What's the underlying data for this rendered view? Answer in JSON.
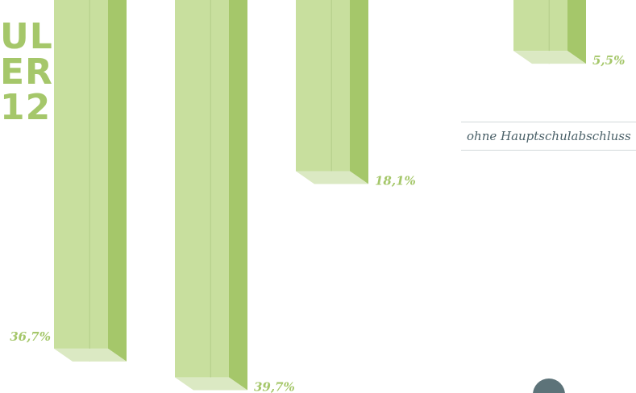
{
  "chart_title_lines": [
    "UL-",
    "ER",
    "12"
  ],
  "category_label": "ohne Hauptschulabschluss",
  "colors": {
    "bar_front": "#c8df9e",
    "bar_side": "#a5c76a",
    "bar_bottom": "#dbe9c3",
    "bar_divider": "#b3cc8a",
    "value_text": "#a5c76a"
  },
  "chart_data": {
    "type": "bar",
    "title": "",
    "xlabel": "",
    "ylabel": "",
    "categories": [
      "",
      "",
      "",
      "ohne Hauptschulabschluss"
    ],
    "values": [
      36.7,
      39.7,
      18.1,
      5.5
    ],
    "value_labels": [
      "36,7%",
      "39,7%",
      "18,1%",
      "5,5%"
    ],
    "ylim": [
      0,
      50
    ],
    "grid": false,
    "legend": "none"
  }
}
